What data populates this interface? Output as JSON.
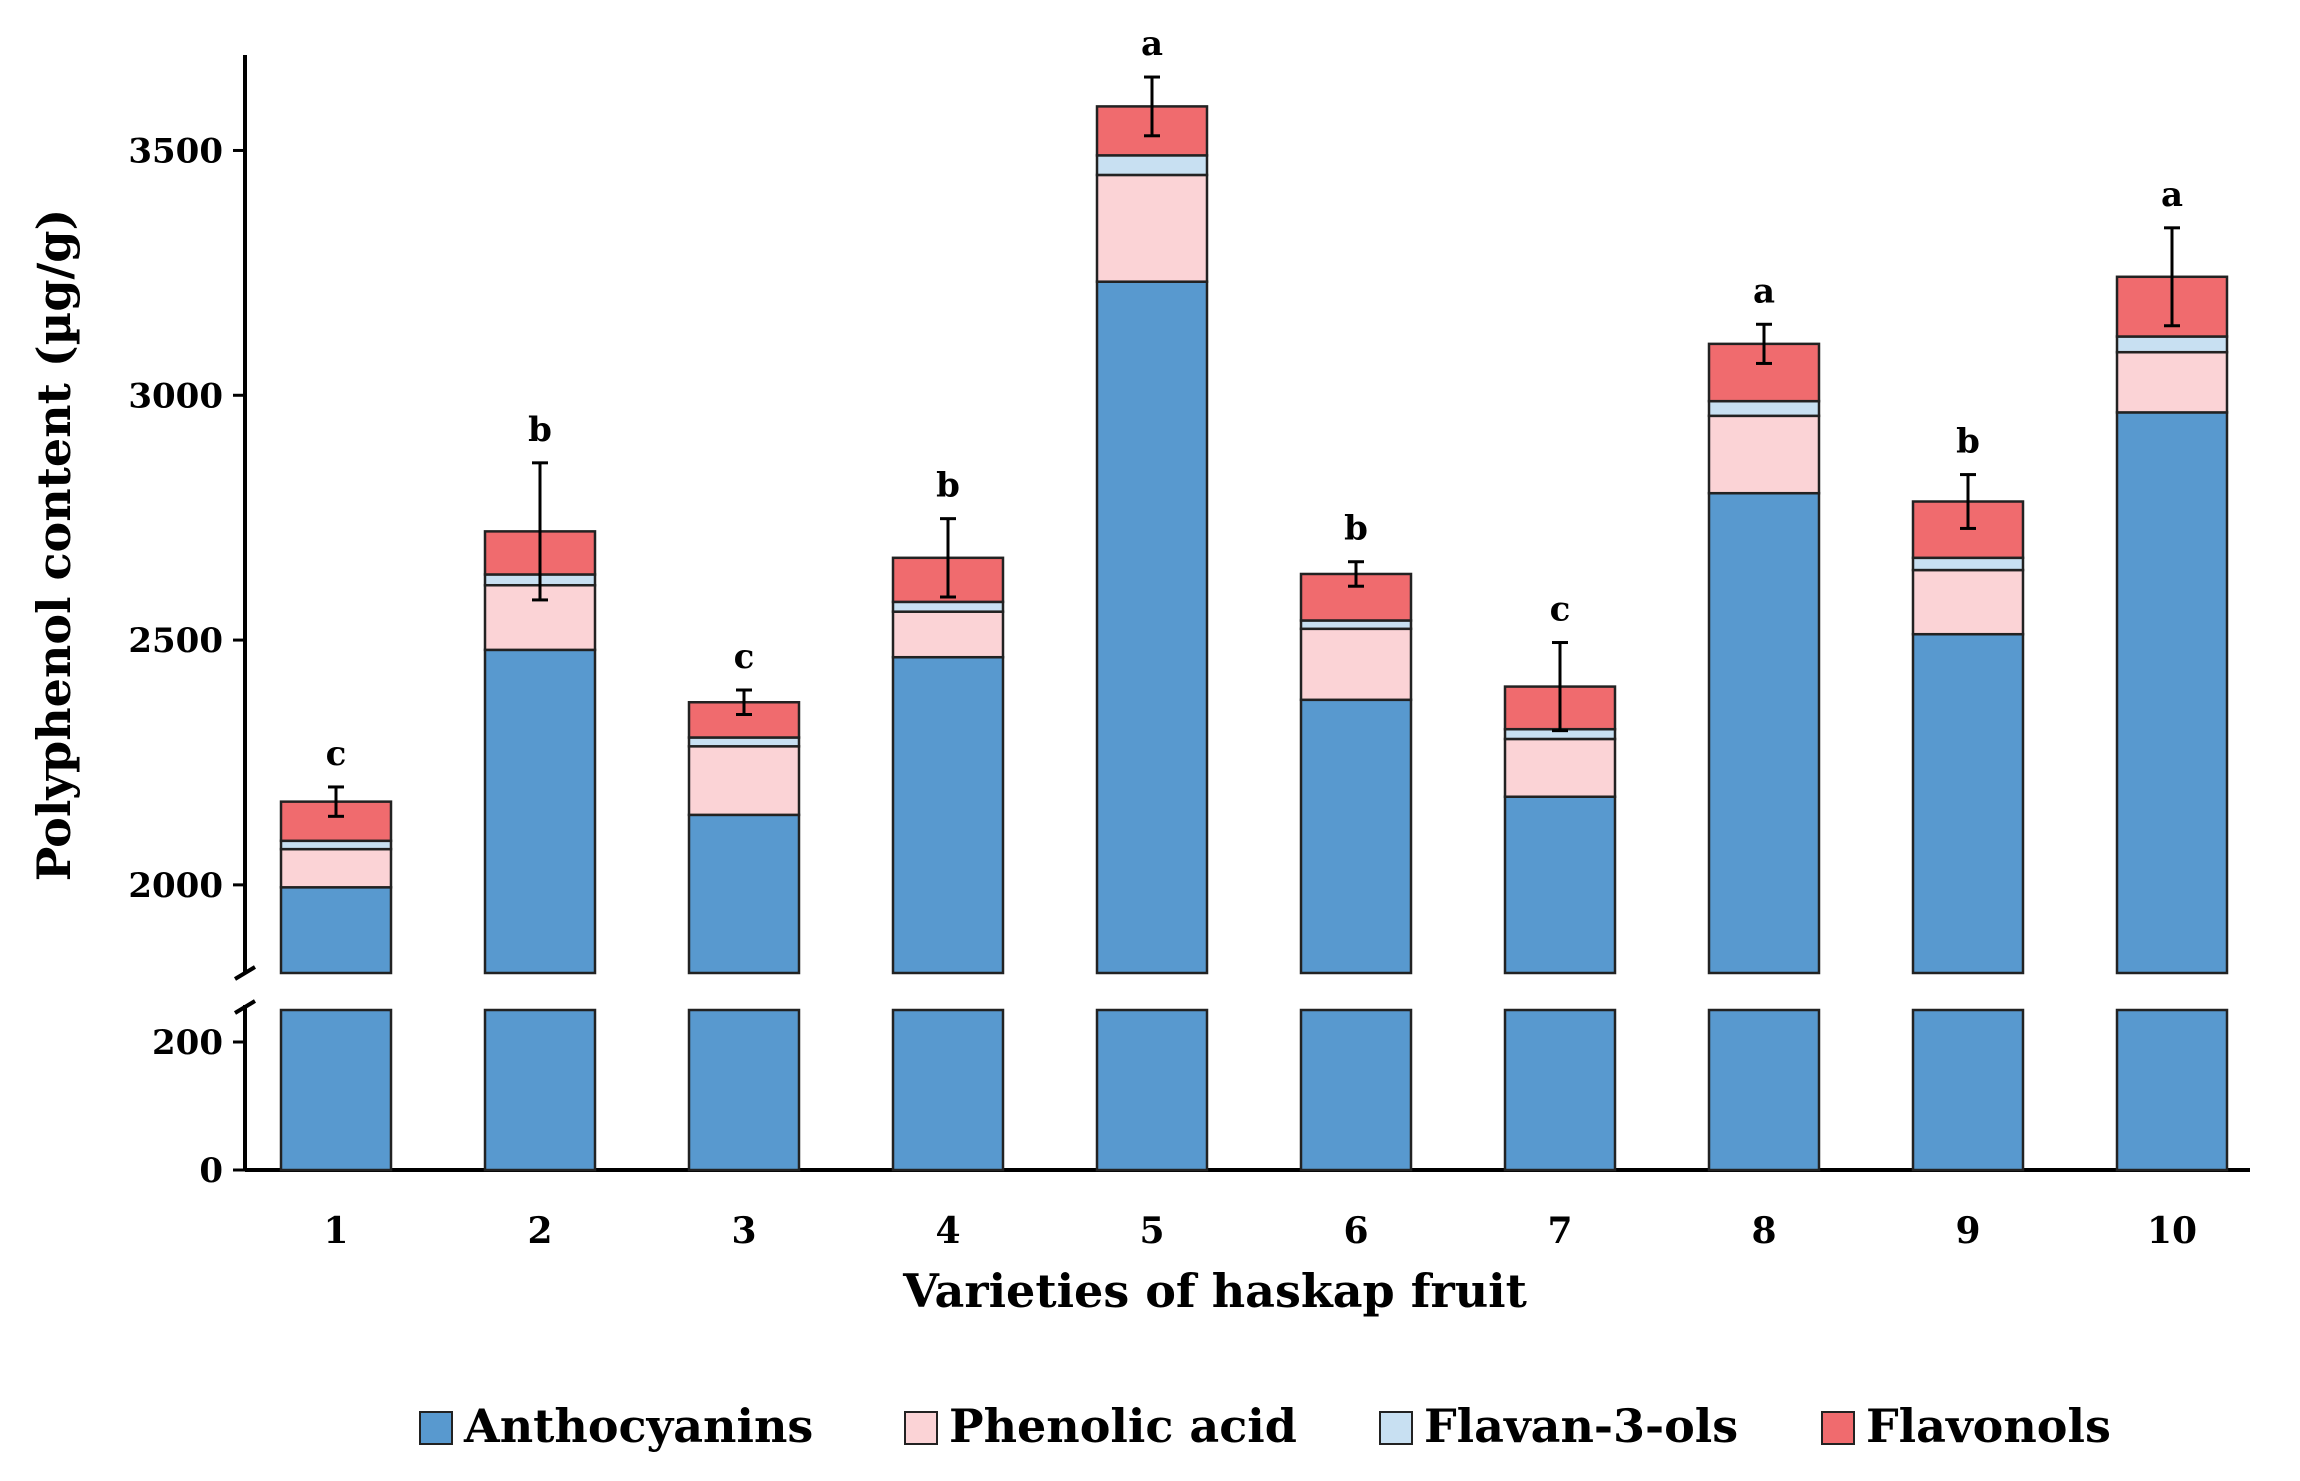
{
  "chart_data": {
    "type": "bar",
    "stacked": true,
    "broken_y_axis": true,
    "title": "",
    "xlabel": "Varieties of haskap fruit",
    "ylabel": "Polyphenol content (µg/g)",
    "categories": [
      "1",
      "2",
      "3",
      "4",
      "5",
      "6",
      "7",
      "8",
      "9",
      "10"
    ],
    "series": [
      {
        "name": "Anthocyanins",
        "color": "#5899cf",
        "values": [
          1995,
          2480,
          2143,
          2465,
          3232,
          2378,
          2180,
          2800,
          2512,
          2965
        ]
      },
      {
        "name": "Phenolic acid",
        "color": "#fbd3d6",
        "values": [
          78,
          132,
          140,
          93,
          218,
          145,
          118,
          158,
          131,
          123
        ]
      },
      {
        "name": "Flavan-3-ols",
        "color": "#c8e0f2",
        "values": [
          17,
          22,
          18,
          20,
          40,
          17,
          20,
          30,
          25,
          32
        ]
      },
      {
        "name": "Flavonols",
        "color": "#f06b6e",
        "values": [
          80,
          88,
          72,
          90,
          100,
          95,
          87,
          117,
          115,
          122
        ]
      }
    ],
    "error": [
      30,
      140,
      25,
      80,
      60,
      25,
      90,
      40,
      55,
      100
    ],
    "significance": [
      "c",
      "b",
      "c",
      "b",
      "a",
      "b",
      "c",
      "a",
      "b",
      "a"
    ],
    "y_axis_segments": [
      {
        "range": [
          0,
          250
        ],
        "ticks": [
          "0",
          "200"
        ]
      },
      {
        "range": [
          1820,
          3695
        ],
        "ticks": [
          "2000",
          "2500",
          "3000",
          "3500"
        ]
      }
    ]
  }
}
